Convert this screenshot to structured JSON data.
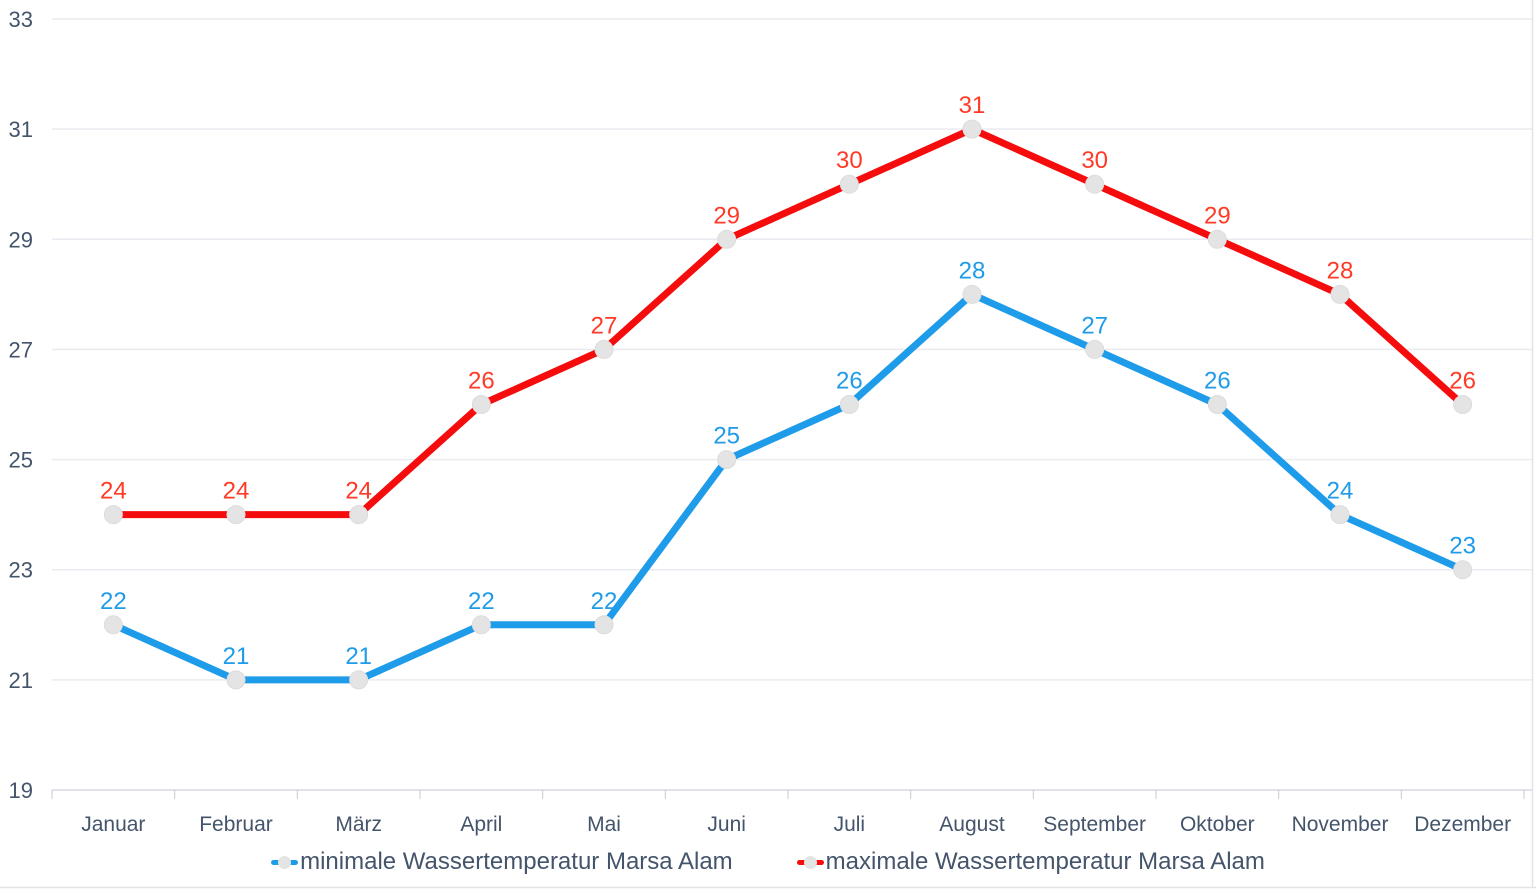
{
  "chart_data": {
    "type": "line",
    "title": "",
    "categories": [
      "Januar",
      "Februar",
      "März",
      "April",
      "Mai",
      "Juni",
      "Juli",
      "August",
      "September",
      "Oktober",
      "November",
      "Dezember"
    ],
    "series": [
      {
        "name": "minimale Wassertemperatur Marsa Alam",
        "values": [
          22,
          21,
          21,
          22,
          22,
          25,
          26,
          28,
          27,
          26,
          24,
          23
        ],
        "line_color": "#1E9BE9",
        "label_color": "#1E9BE9"
      },
      {
        "name": "maximale Wassertemperatur Marsa Alam",
        "values": [
          24,
          24,
          24,
          26,
          27,
          29,
          30,
          31,
          30,
          29,
          28,
          26
        ],
        "line_color": "#F50C0C",
        "label_color": "#FF3A26"
      }
    ],
    "ylim": [
      19,
      33
    ],
    "yticks": [
      19,
      21,
      23,
      25,
      27,
      29,
      31,
      33
    ],
    "grid": true,
    "data_labels": true,
    "legend_position": "bottom",
    "marker_fill": "#E4E4E4",
    "marker_stroke": "#DCDCDC",
    "axis_text_color": "#44546A",
    "gridline_color": "#E9EBF0",
    "axis_line_color": "#D8DBE0",
    "tick_color": "#C6CBD3",
    "border_color": "#E3E3E3"
  }
}
